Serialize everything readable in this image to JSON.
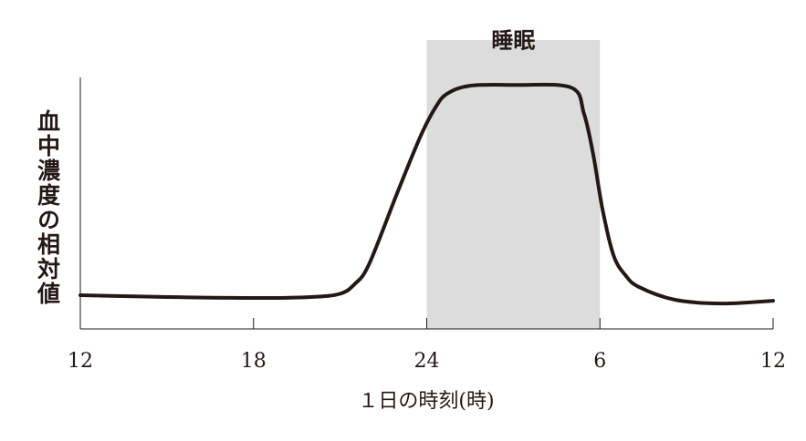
{
  "chart_data": {
    "type": "line",
    "ylabel": "血中濃度の相対値",
    "xlabel": "１日の時刻(時)",
    "shaded_region": {
      "label": "睡眠",
      "range": [
        24,
        30
      ],
      "color": "#dcdcdc"
    },
    "x": [
      12,
      15,
      18,
      20,
      21,
      21.5,
      22,
      23,
      23.8,
      24.3,
      24.7,
      25.5,
      27,
      29,
      29.45,
      29.77,
      30.09,
      30.47,
      30.88,
      31.35,
      32.6,
      34.2,
      36
    ],
    "series": [
      {
        "name": "血中濃度",
        "color": "#231815",
        "values": [
          13.4,
          12.7,
          12.3,
          12.7,
          14,
          17.8,
          25.7,
          54.7,
          77,
          88,
          93.5,
          96.7,
          97,
          96,
          85.5,
          69.2,
          47.5,
          29.3,
          21.4,
          16.7,
          11.6,
          10.1,
          11.2
        ]
      }
    ],
    "xlim": [
      12,
      36
    ],
    "xticks": [
      12,
      18,
      24,
      {
        "value": 30,
        "label": "6"
      },
      {
        "value": 36,
        "label": "12"
      }
    ],
    "ylim": [
      0,
      100
    ]
  }
}
